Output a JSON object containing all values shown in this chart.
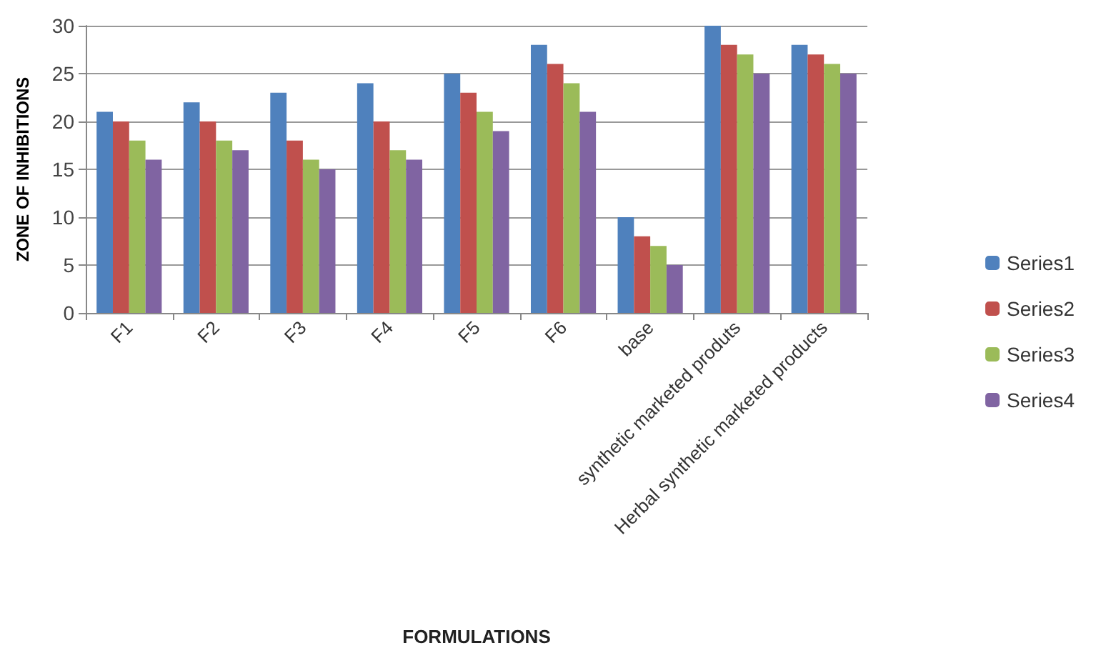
{
  "chart_data": {
    "type": "bar",
    "xlabel": "FORMULATIONS",
    "ylabel": "ZONE OF INHIBITIONS",
    "categories": [
      "F1",
      "F2",
      "F3",
      "F4",
      "F5",
      "F6",
      "base",
      "synthetic marketed produts",
      "Herbal synthetic marketed products"
    ],
    "series": [
      {
        "name": "Series1",
        "color": "#4f81bd",
        "values": [
          21,
          22,
          23,
          24,
          25,
          28,
          10,
          30,
          28
        ]
      },
      {
        "name": "Series2",
        "color": "#c0504d",
        "values": [
          20,
          20,
          18,
          20,
          23,
          26,
          8,
          28,
          27
        ]
      },
      {
        "name": "Series3",
        "color": "#9bbb59",
        "values": [
          18,
          18,
          16,
          17,
          21,
          24,
          7,
          27,
          26
        ]
      },
      {
        "name": "Series4",
        "color": "#8064a2",
        "values": [
          16,
          17,
          15,
          16,
          19,
          21,
          5,
          25,
          25
        ]
      }
    ],
    "ylim": [
      0,
      30
    ],
    "yticks": [
      0,
      5,
      10,
      15,
      20,
      25,
      30
    ],
    "grid": "y",
    "legend": "right"
  }
}
